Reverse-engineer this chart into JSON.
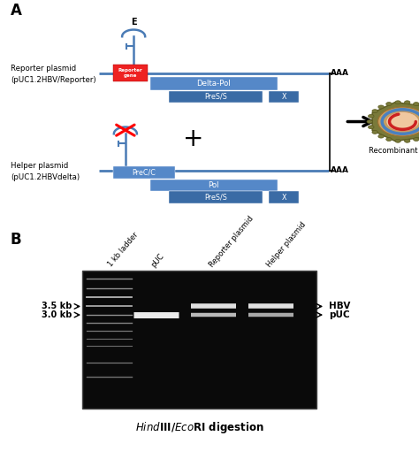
{
  "panel_A_label": "A",
  "panel_B_label": "B",
  "blue_color": "#4A7BB5",
  "dark_blue_color": "#3A6BA5",
  "med_blue_color": "#5588C8",
  "red_color": "#EE2222",
  "reporter_plasmid_label1": "Reporter plasmid",
  "reporter_plasmid_label2": "(pUC1.2HBV/Reporter)",
  "helper_plasmid_label1": "Helper plasmid",
  "helper_plasmid_label2": "(pUC1.2HBVdelta)",
  "reporter_gene_label": "Reporter\ngene",
  "delta_pol_label": "Delta-Pol",
  "pres_s_label1": "PreS/S",
  "x_label1": "X",
  "prec_c_label": "PreC/C",
  "pol_label": "Pol",
  "pres_s_label2": "PreS/S",
  "x_label2": "X",
  "aaa_label": "AAA",
  "e_label": "E",
  "recombinant_label": "Recombinant HBV",
  "plus_label": "+",
  "band_labels_left": [
    "3.5 kb",
    "3.0 kb"
  ],
  "band_labels_right": [
    "HBV",
    "pUC"
  ],
  "lane_labels": [
    "1 kb ladder",
    "pUC",
    "Reporter plasmid",
    "Helper plasmid"
  ],
  "background_color": "#ffffff",
  "virus_outer_color": "#7A7A3A",
  "virus_mid_color": "#C8A060",
  "virus_inner_color": "#F0C8A0",
  "virus_dna_red": "#CC2020",
  "virus_ring_blue": "#4A80C0"
}
